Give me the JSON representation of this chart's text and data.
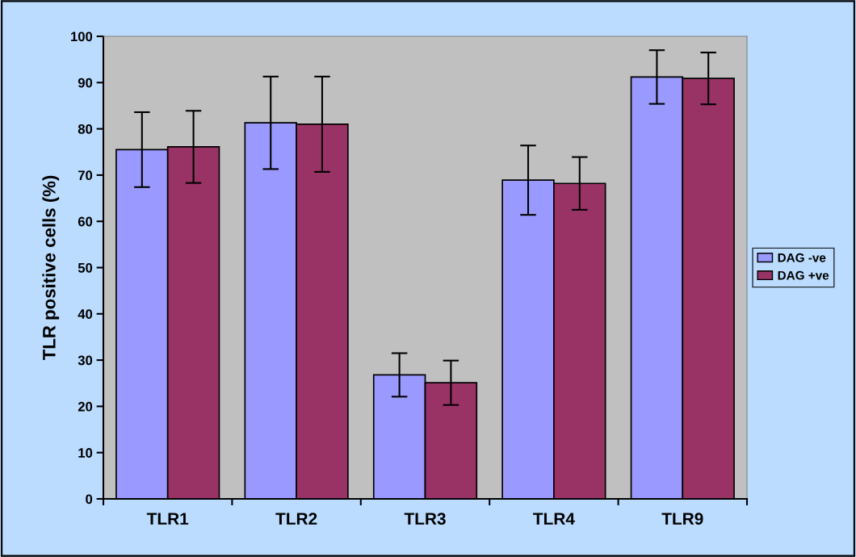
{
  "chart_data": {
    "type": "bar",
    "ylabel": "TLR positive cells (%)",
    "categories": [
      "TLR1",
      "TLR2",
      "TLR3",
      "TLR4",
      "TLR9"
    ],
    "series": [
      {
        "name": "DAG -ve",
        "color": "#9999ff",
        "values": [
          75.5,
          81.3,
          26.8,
          68.9,
          91.2
        ],
        "errors": [
          8.1,
          10.0,
          4.7,
          7.5,
          5.8
        ]
      },
      {
        "name": "DAG +ve",
        "color": "#993366",
        "values": [
          76.1,
          81.0,
          25.1,
          68.2,
          90.9
        ],
        "errors": [
          7.8,
          10.3,
          4.8,
          5.7,
          5.6
        ]
      }
    ],
    "ylim": [
      0,
      100
    ],
    "yticks": [
      0,
      10,
      20,
      30,
      40,
      50,
      60,
      70,
      80,
      90,
      100
    ],
    "grid": false,
    "legend": "right"
  }
}
